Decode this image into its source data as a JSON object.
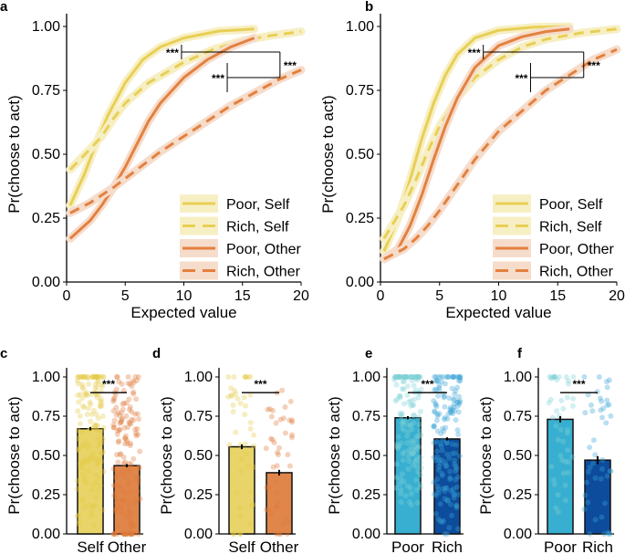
{
  "colors": {
    "self": "#e8cf55",
    "other": "#e3813f",
    "self_bar": "#e8d468",
    "other_bar": "#e0864a",
    "poor_bar": "#38afd0",
    "rich_bar": "#0d4c9c",
    "self_ribbon": "#f7efc4",
    "other_ribbon": "#f6dccb"
  },
  "chart_data": [
    {
      "panel": "a",
      "type": "line",
      "xlabel": "Expected value",
      "ylabel": "Pr(choose to act)",
      "xlim": [
        0,
        20
      ],
      "ylim": [
        0,
        1
      ],
      "xticks": [
        "0",
        "5",
        "10",
        "15",
        "20"
      ],
      "yticks": [
        "0.00",
        "0.25",
        "0.50",
        "0.75",
        "1.00"
      ],
      "legend_position": "bottom-right",
      "series": [
        {
          "name": "Poor, Self",
          "style": "solid",
          "group": "self",
          "points": [
            [
              0.3,
              0.3
            ],
            [
              1.5,
              0.42
            ],
            [
              2.5,
              0.54
            ],
            [
              3.5,
              0.65
            ],
            [
              5,
              0.78
            ],
            [
              6.5,
              0.87
            ],
            [
              8,
              0.92
            ],
            [
              10,
              0.955
            ],
            [
              13,
              0.982
            ],
            [
              16,
              0.99
            ]
          ]
        },
        {
          "name": "Rich, Self",
          "style": "dashed",
          "group": "self",
          "points": [
            [
              0.3,
              0.44
            ],
            [
              2,
              0.52
            ],
            [
              3,
              0.57
            ],
            [
              4,
              0.64
            ],
            [
              5,
              0.7
            ],
            [
              7,
              0.78
            ],
            [
              10,
              0.86
            ],
            [
              12.5,
              0.91
            ],
            [
              15,
              0.945
            ],
            [
              17.5,
              0.965
            ],
            [
              20,
              0.98
            ]
          ]
        },
        {
          "name": "Poor, Other",
          "style": "solid",
          "group": "other",
          "points": [
            [
              0.3,
              0.17
            ],
            [
              2,
              0.24
            ],
            [
              3,
              0.3
            ],
            [
              4,
              0.37
            ],
            [
              5,
              0.45
            ],
            [
              6,
              0.54
            ],
            [
              7,
              0.63
            ],
            [
              8,
              0.7
            ],
            [
              10,
              0.8
            ],
            [
              12,
              0.87
            ],
            [
              14,
              0.92
            ],
            [
              16,
              0.955
            ]
          ]
        },
        {
          "name": "Rich, Other",
          "style": "dashed",
          "group": "other",
          "points": [
            [
              0.3,
              0.27
            ],
            [
              2,
              0.31
            ],
            [
              4,
              0.37
            ],
            [
              6,
              0.44
            ],
            [
              8,
              0.51
            ],
            [
              10,
              0.57
            ],
            [
              12,
              0.63
            ],
            [
              14,
              0.69
            ],
            [
              16,
              0.74
            ],
            [
              18,
              0.79
            ],
            [
              20,
              0.83
            ]
          ]
        }
      ],
      "annotations": [
        {
          "text": "***",
          "x1": 9.8,
          "x2": 18.2,
          "y": 0.9
        },
        {
          "text": "***",
          "x1": 13.7,
          "x2": 18.2,
          "y": 0.8
        },
        {
          "text": "***",
          "x": 18.2,
          "y1": 0.8,
          "y2": 0.9
        }
      ]
    },
    {
      "panel": "b",
      "type": "line",
      "xlabel": "Expected value",
      "ylabel": "Pr(choose to act)",
      "xlim": [
        0,
        20
      ],
      "ylim": [
        0,
        1
      ],
      "xticks": [
        "0",
        "5",
        "10",
        "15",
        "20"
      ],
      "yticks": [
        "0.00",
        "0.25",
        "0.50",
        "0.75",
        "1.00"
      ],
      "legend_position": "bottom-right",
      "series": [
        {
          "name": "Poor, Self",
          "style": "solid",
          "group": "self",
          "points": [
            [
              0.3,
              0.12
            ],
            [
              1.5,
              0.25
            ],
            [
              2.5,
              0.4
            ],
            [
              3.5,
              0.56
            ],
            [
              4.5,
              0.7
            ],
            [
              5.5,
              0.81
            ],
            [
              6.5,
              0.89
            ],
            [
              8,
              0.955
            ],
            [
              10,
              0.985
            ],
            [
              13,
              0.997
            ],
            [
              16,
              1.0
            ]
          ]
        },
        {
          "name": "Rich, Self",
          "style": "dashed",
          "group": "self",
          "points": [
            [
              0.3,
              0.17
            ],
            [
              2,
              0.3
            ],
            [
              3,
              0.4
            ],
            [
              4,
              0.51
            ],
            [
              5,
              0.61
            ],
            [
              6.5,
              0.72
            ],
            [
              8,
              0.8
            ],
            [
              10,
              0.87
            ],
            [
              12,
              0.92
            ],
            [
              14,
              0.95
            ],
            [
              17,
              0.975
            ],
            [
              20,
              0.99
            ]
          ]
        },
        {
          "name": "Poor, Other",
          "style": "solid",
          "group": "other",
          "points": [
            [
              0.3,
              0.09
            ],
            [
              1.5,
              0.13
            ],
            [
              2.5,
              0.22
            ],
            [
              3.5,
              0.34
            ],
            [
              4.5,
              0.48
            ],
            [
              5.5,
              0.61
            ],
            [
              6.5,
              0.72
            ],
            [
              8,
              0.84
            ],
            [
              10,
              0.925
            ],
            [
              12,
              0.96
            ],
            [
              14,
              0.98
            ],
            [
              16,
              0.99
            ]
          ]
        },
        {
          "name": "Rich, Other",
          "style": "dashed",
          "group": "other",
          "points": [
            [
              0.3,
              0.09
            ],
            [
              2,
              0.13
            ],
            [
              3,
              0.17
            ],
            [
              4,
              0.22
            ],
            [
              5,
              0.28
            ],
            [
              6.5,
              0.38
            ],
            [
              8,
              0.48
            ],
            [
              10,
              0.59
            ],
            [
              12,
              0.67
            ],
            [
              14,
              0.75
            ],
            [
              16,
              0.81
            ],
            [
              18,
              0.87
            ],
            [
              20,
              0.91
            ]
          ]
        }
      ],
      "annotations": [
        {
          "text": "***",
          "x1": 8.7,
          "x2": 17.2,
          "y": 0.9
        },
        {
          "text": "***",
          "x1": 12.7,
          "x2": 17.2,
          "y": 0.8
        },
        {
          "text": "***",
          "x": 17.2,
          "y1": 0.8,
          "y2": 0.9
        }
      ]
    },
    {
      "panel": "c",
      "type": "bar",
      "ylabel": "Pr(choose to act)",
      "ylim": [
        0,
        1
      ],
      "yticks": [
        "0.00",
        "0.25",
        "0.50",
        "0.75",
        "1.00"
      ],
      "categories": [
        "Self",
        "Other"
      ],
      "values": [
        0.67,
        0.435
      ],
      "errors": [
        0.01,
        0.01
      ],
      "colors": [
        "self_bar",
        "other_bar"
      ],
      "significance": "***",
      "individual_points": true
    },
    {
      "panel": "d",
      "type": "bar",
      "ylabel": "Pr(choose to act)",
      "ylim": [
        0,
        1
      ],
      "yticks": [
        "0.00",
        "0.25",
        "0.50",
        "0.75",
        "1.00"
      ],
      "categories": [
        "Self",
        "Other"
      ],
      "values": [
        0.555,
        0.39
      ],
      "errors": [
        0.015,
        0.018
      ],
      "colors": [
        "self_bar",
        "other_bar"
      ],
      "significance": "***",
      "individual_points": true
    },
    {
      "panel": "e",
      "type": "bar",
      "ylabel": "Pr(choose to act)",
      "ylim": [
        0,
        1
      ],
      "yticks": [
        "0.00",
        "0.25",
        "0.50",
        "0.75",
        "1.00"
      ],
      "categories": [
        "Poor",
        "Rich"
      ],
      "values": [
        0.74,
        0.605
      ],
      "errors": [
        0.01,
        0.01
      ],
      "colors": [
        "poor_bar",
        "rich_bar"
      ],
      "significance": "***",
      "individual_points": true
    },
    {
      "panel": "f",
      "type": "bar",
      "ylabel": "Pr(choose to act)",
      "ylim": [
        0,
        1
      ],
      "yticks": [
        "0.00",
        "0.25",
        "0.50",
        "0.75",
        "1.00"
      ],
      "categories": [
        "Poor",
        "Rich"
      ],
      "values": [
        0.73,
        0.47
      ],
      "errors": [
        0.02,
        0.025
      ],
      "colors": [
        "poor_bar",
        "rich_bar"
      ],
      "significance": "***",
      "individual_points": true
    }
  ]
}
